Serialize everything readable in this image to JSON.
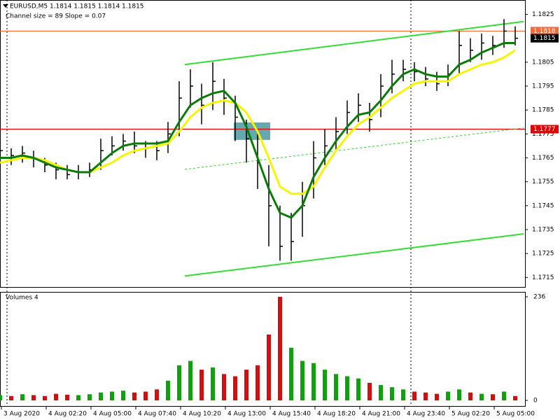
{
  "chart_data": {
    "type": "ohlc",
    "title": "EURUSD,M5  1.1814 1.1815 1.1814 1.1815",
    "subtitle": "Channel size = 89 Slope = 0.07",
    "xlim": [
      0,
      375
    ],
    "xticks": [
      {
        "value": 1,
        "label": "3 Aug 2020"
      },
      {
        "value": 33,
        "label": "4 Aug 02:20"
      },
      {
        "value": 65,
        "label": "4 Aug 05:00"
      },
      {
        "value": 97,
        "label": "4 Aug 07:40"
      },
      {
        "value": 129,
        "label": "4 Aug 10:20"
      },
      {
        "value": 161,
        "label": "4 Aug 13:00"
      },
      {
        "value": 193,
        "label": "4 Aug 15:40"
      },
      {
        "value": 225,
        "label": "4 Aug 18:20"
      },
      {
        "value": 257,
        "label": "4 Aug 21:00"
      },
      {
        "value": 289,
        "label": "4 Aug 23:40"
      },
      {
        "value": 321,
        "label": "5 Aug 02:20"
      },
      {
        "value": 353,
        "label": "5 Aug 05:00"
      }
    ],
    "ylim": [
      1.1711,
      1.1831
    ],
    "yticks": [
      1.1825,
      1.1805,
      1.1795,
      1.1785,
      1.1775,
      1.1765,
      1.1755,
      1.1745,
      1.1735,
      1.1725,
      1.1715
    ],
    "x": [
      0,
      8,
      16,
      24,
      32,
      40,
      48,
      56,
      64,
      72,
      80,
      88,
      96,
      104,
      112,
      120,
      128,
      136,
      144,
      152,
      160,
      168,
      176,
      184,
      192,
      200,
      208,
      216,
      224,
      232,
      240,
      248,
      256,
      264,
      272,
      280,
      288,
      296,
      304,
      312,
      320,
      328,
      336,
      344,
      352,
      360,
      368
    ],
    "close": [
      1.1768,
      1.1766,
      1.1767,
      1.1765,
      1.1762,
      1.176,
      1.1758,
      1.1759,
      1.176,
      1.1768,
      1.177,
      1.1772,
      1.177,
      1.1769,
      1.1768,
      1.1775,
      1.179,
      1.1795,
      1.1787,
      1.1797,
      1.179,
      1.1782,
      1.1773,
      1.1763,
      1.1745,
      1.1728,
      1.173,
      1.1745,
      1.1765,
      1.177,
      1.1776,
      1.1784,
      1.1787,
      1.1781,
      1.1795,
      1.18,
      1.1802,
      1.1801,
      1.1798,
      1.1796,
      1.18,
      1.1812,
      1.181,
      1.1813,
      1.1812,
      1.1818,
      1.1815
    ],
    "high": [
      1.1772,
      1.1769,
      1.177,
      1.1768,
      1.1765,
      1.1763,
      1.1762,
      1.1762,
      1.1763,
      1.1773,
      1.1774,
      1.1775,
      1.1776,
      1.1772,
      1.1772,
      1.178,
      1.1797,
      1.1802,
      1.1796,
      1.1805,
      1.1798,
      1.1791,
      1.1781,
      1.1775,
      1.1762,
      1.1745,
      1.1742,
      1.1755,
      1.1772,
      1.1777,
      1.1782,
      1.1789,
      1.1792,
      1.1788,
      1.18,
      1.1806,
      1.1806,
      1.1805,
      1.1803,
      1.1801,
      1.1804,
      1.1818,
      1.1815,
      1.1817,
      1.1816,
      1.1823,
      1.182
    ],
    "low": [
      1.1762,
      1.1762,
      1.1763,
      1.1761,
      1.1759,
      1.1756,
      1.1756,
      1.1756,
      1.1757,
      1.176,
      1.1766,
      1.1768,
      1.1767,
      1.1765,
      1.1764,
      1.1767,
      1.1774,
      1.1786,
      1.1779,
      1.1785,
      1.1783,
      1.1772,
      1.1763,
      1.1752,
      1.1728,
      1.1722,
      1.1722,
      1.1732,
      1.1748,
      1.1762,
      1.1768,
      1.1775,
      1.178,
      1.1776,
      1.1782,
      1.1792,
      1.1797,
      1.1797,
      1.1795,
      1.1793,
      1.1795,
      1.18,
      1.1805,
      1.1806,
      1.1808,
      1.1811,
      1.1812
    ],
    "bar_color": "#000000",
    "series": [
      {
        "color": "#f5f500",
        "values": [
          1.1763,
          1.1764,
          1.1765,
          1.1765,
          1.1764,
          1.1762,
          1.176,
          1.1759,
          1.1759,
          1.1761,
          1.1763,
          1.1766,
          1.1768,
          1.1769,
          1.177,
          1.1771,
          1.1776,
          1.1782,
          1.1786,
          1.1788,
          1.1789,
          1.1788,
          1.1784,
          1.1776,
          1.1765,
          1.1753,
          1.175,
          1.175,
          1.1753,
          1.1761,
          1.1768,
          1.1774,
          1.1779,
          1.1782,
          1.1786,
          1.179,
          1.1793,
          1.1796,
          1.1797,
          1.1797,
          1.1797,
          1.18,
          1.1802,
          1.1804,
          1.1805,
          1.1807,
          1.181
        ]
      },
      {
        "color": "#0b7a0b",
        "values": [
          1.1765,
          1.1765,
          1.1766,
          1.1765,
          1.1763,
          1.1761,
          1.176,
          1.1759,
          1.1759,
          1.1763,
          1.1767,
          1.177,
          1.1771,
          1.1771,
          1.1771,
          1.1772,
          1.178,
          1.1787,
          1.179,
          1.1792,
          1.1793,
          1.1788,
          1.1778,
          1.1765,
          1.1752,
          1.1742,
          1.174,
          1.1745,
          1.1757,
          1.1765,
          1.1772,
          1.1778,
          1.1783,
          1.1784,
          1.1789,
          1.1795,
          1.18,
          1.1802,
          1.18,
          1.1799,
          1.1799,
          1.1804,
          1.1806,
          1.1809,
          1.1811,
          1.1813,
          1.1813
        ]
      }
    ],
    "channel": [
      {
        "x": [
          132,
          374
        ],
        "y": [
          1.1804,
          1.1822
        ],
        "color": "#33dd33",
        "dashed": false
      },
      {
        "x": [
          132,
          374
        ],
        "y": [
          1.17156,
          1.17332
        ],
        "color": "#33dd33",
        "dashed": false
      },
      {
        "x": [
          132,
          374
        ],
        "y": [
          1.17602,
          1.17775
        ],
        "color": "#33cc33",
        "dashed": true
      }
    ],
    "zone": {
      "x": [
        167,
        193
      ],
      "y": [
        1.17725,
        1.17798
      ],
      "color": "#4a9aa0"
    },
    "levels": [
      {
        "value": 1.1818,
        "color": "#f26b3a",
        "text_color": "#ffffff",
        "line": true
      },
      {
        "value": 1.1815,
        "color": "#000000",
        "text_color": "#ffffff",
        "line": false
      },
      {
        "value": 1.1777,
        "color": "#e00000",
        "text_color": "#ffffff",
        "line": true
      }
    ],
    "volume": {
      "title": "Volumes 4",
      "ylim": [
        0,
        236
      ],
      "yticks": [
        236,
        0
      ],
      "up_color": "#10a010",
      "down_color": "#d01010",
      "values": [
        12,
        10,
        14,
        12,
        10,
        15,
        13,
        12,
        14,
        18,
        20,
        22,
        18,
        20,
        25,
        45,
        80,
        90,
        70,
        75,
        60,
        55,
        70,
        80,
        150,
        236,
        120,
        90,
        85,
        70,
        60,
        55,
        50,
        40,
        35,
        30,
        25,
        20,
        18,
        15,
        20,
        25,
        18,
        15,
        14,
        20,
        10
      ]
    }
  }
}
